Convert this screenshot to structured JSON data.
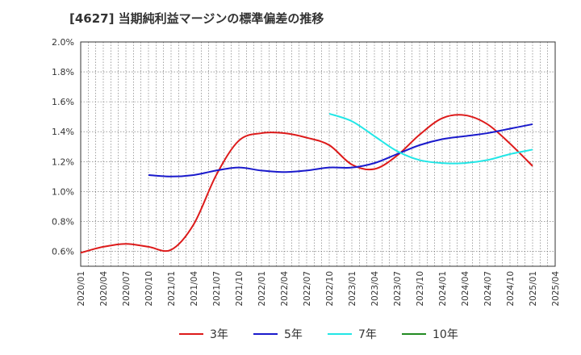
{
  "chart_data": {
    "type": "line",
    "title": "[4627]  当期純利益マージンの標準偏差の推移",
    "xlabel": "",
    "ylabel": "",
    "ylim": [
      0.5,
      2.0
    ],
    "yticks": [
      "0.6%",
      "0.8%",
      "1.0%",
      "1.2%",
      "1.4%",
      "1.6%",
      "1.8%",
      "2.0%"
    ],
    "xticks": [
      "2020/01",
      "2020/04",
      "2020/07",
      "2020/10",
      "2021/01",
      "2021/04",
      "2021/07",
      "2021/10",
      "2022/01",
      "2022/04",
      "2022/07",
      "2022/10",
      "2023/01",
      "2023/04",
      "2023/07",
      "2023/10",
      "2024/01",
      "2024/04",
      "2024/07",
      "2024/10",
      "2025/01",
      "2025/04"
    ],
    "grid": true,
    "legend_position": "bottom",
    "series": [
      {
        "name": "3年",
        "color": "#dd1a1a",
        "points": [
          [
            "2020/01",
            0.59
          ],
          [
            "2020/04",
            0.63
          ],
          [
            "2020/07",
            0.65
          ],
          [
            "2020/10",
            0.63
          ],
          [
            "2021/01",
            0.61
          ],
          [
            "2021/04",
            0.78
          ],
          [
            "2021/07",
            1.11
          ],
          [
            "2021/10",
            1.34
          ],
          [
            "2022/01",
            1.39
          ],
          [
            "2022/04",
            1.39
          ],
          [
            "2022/07",
            1.36
          ],
          [
            "2022/10",
            1.31
          ],
          [
            "2023/01",
            1.18
          ],
          [
            "2023/04",
            1.15
          ],
          [
            "2023/07",
            1.24
          ],
          [
            "2023/10",
            1.38
          ],
          [
            "2024/01",
            1.49
          ],
          [
            "2024/04",
            1.51
          ],
          [
            "2024/07",
            1.45
          ],
          [
            "2024/10",
            1.32
          ],
          [
            "2025/01",
            1.17
          ]
        ]
      },
      {
        "name": "5年",
        "color": "#1a1acc",
        "points": [
          [
            "2020/10",
            1.11
          ],
          [
            "2021/01",
            1.1
          ],
          [
            "2021/04",
            1.11
          ],
          [
            "2021/07",
            1.14
          ],
          [
            "2021/10",
            1.16
          ],
          [
            "2022/01",
            1.14
          ],
          [
            "2022/04",
            1.13
          ],
          [
            "2022/07",
            1.14
          ],
          [
            "2022/10",
            1.16
          ],
          [
            "2023/01",
            1.16
          ],
          [
            "2023/04",
            1.19
          ],
          [
            "2023/07",
            1.25
          ],
          [
            "2023/10",
            1.31
          ],
          [
            "2024/01",
            1.35
          ],
          [
            "2024/04",
            1.37
          ],
          [
            "2024/07",
            1.39
          ],
          [
            "2024/10",
            1.42
          ],
          [
            "2025/01",
            1.45
          ]
        ]
      },
      {
        "name": "7年",
        "color": "#22e6e6",
        "points": [
          [
            "2022/10",
            1.52
          ],
          [
            "2023/01",
            1.47
          ],
          [
            "2023/04",
            1.37
          ],
          [
            "2023/07",
            1.27
          ],
          [
            "2023/10",
            1.21
          ],
          [
            "2024/01",
            1.19
          ],
          [
            "2024/04",
            1.19
          ],
          [
            "2024/07",
            1.21
          ],
          [
            "2024/10",
            1.25
          ],
          [
            "2025/01",
            1.28
          ]
        ]
      },
      {
        "name": "10年",
        "color": "#228b22",
        "points": []
      }
    ]
  }
}
